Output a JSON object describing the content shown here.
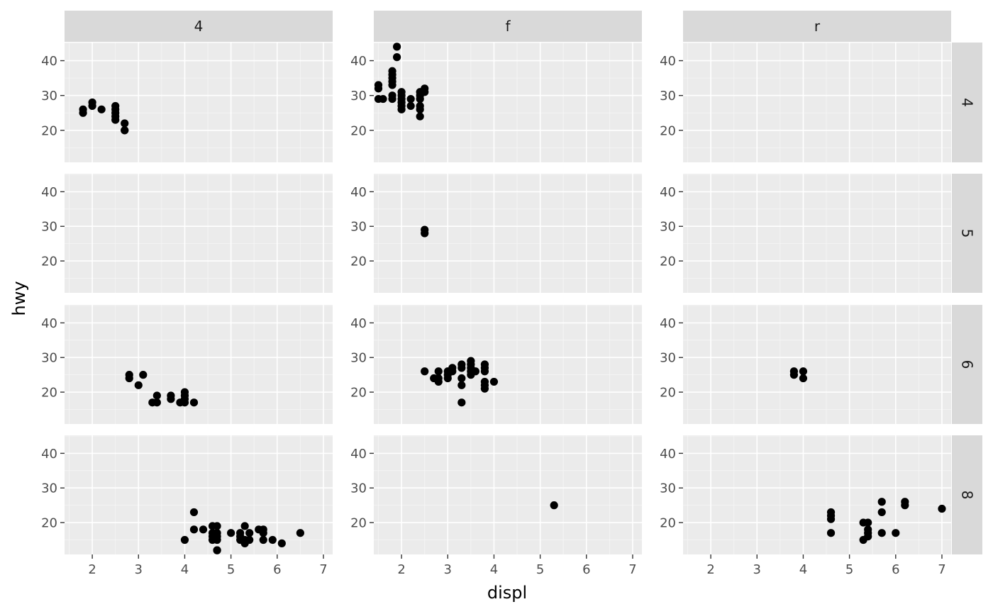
{
  "chart_data": {
    "type": "scatter",
    "xlabel": "displ",
    "ylabel": "hwy",
    "facet_cols": [
      "4",
      "f",
      "r"
    ],
    "facet_rows": [
      "4",
      "5",
      "6",
      "8"
    ],
    "xlim": [
      1.4,
      7.2
    ],
    "ylim": [
      10.8,
      45.2
    ],
    "x_ticks": [
      2,
      3,
      4,
      5,
      6,
      7
    ],
    "y_ticks": [
      20,
      30,
      40
    ],
    "grid": true,
    "point_color": "#000000",
    "panel_background": "#ebebeb",
    "strip_background": "#d9d9d9",
    "panels": [
      {
        "col": "4",
        "row": "4",
        "points": [
          [
            1.8,
            25
          ],
          [
            1.8,
            26
          ],
          [
            2.0,
            27
          ],
          [
            2.0,
            28
          ],
          [
            2.2,
            26
          ],
          [
            2.5,
            23
          ],
          [
            2.5,
            24
          ],
          [
            2.5,
            25
          ],
          [
            2.5,
            26
          ],
          [
            2.5,
            27
          ],
          [
            2.7,
            20
          ],
          [
            2.7,
            20
          ],
          [
            2.7,
            22
          ]
        ]
      },
      {
        "col": "f",
        "row": "4",
        "points": [
          [
            1.5,
            29
          ],
          [
            1.5,
            32
          ],
          [
            1.5,
            33
          ],
          [
            1.6,
            29
          ],
          [
            1.8,
            29
          ],
          [
            1.8,
            30
          ],
          [
            1.8,
            33
          ],
          [
            1.8,
            34
          ],
          [
            1.8,
            35
          ],
          [
            1.8,
            36
          ],
          [
            1.8,
            37
          ],
          [
            1.9,
            41
          ],
          [
            1.9,
            44
          ],
          [
            2.0,
            26
          ],
          [
            2.0,
            27
          ],
          [
            2.0,
            28
          ],
          [
            2.0,
            29
          ],
          [
            2.0,
            30
          ],
          [
            2.0,
            31
          ],
          [
            2.2,
            27
          ],
          [
            2.2,
            29
          ],
          [
            2.4,
            24
          ],
          [
            2.4,
            26
          ],
          [
            2.4,
            27
          ],
          [
            2.4,
            29
          ],
          [
            2.4,
            30
          ],
          [
            2.4,
            31
          ],
          [
            2.5,
            31
          ],
          [
            2.5,
            32
          ]
        ]
      },
      {
        "col": "r",
        "row": "4",
        "points": []
      },
      {
        "col": "4",
        "row": "5",
        "points": []
      },
      {
        "col": "f",
        "row": "5",
        "points": [
          [
            2.5,
            28
          ],
          [
            2.5,
            29
          ]
        ]
      },
      {
        "col": "r",
        "row": "5",
        "points": []
      },
      {
        "col": "4",
        "row": "6",
        "points": [
          [
            2.8,
            24
          ],
          [
            2.8,
            25
          ],
          [
            3.0,
            22
          ],
          [
            3.1,
            25
          ],
          [
            3.3,
            17
          ],
          [
            3.4,
            17
          ],
          [
            3.4,
            19
          ],
          [
            3.7,
            18
          ],
          [
            3.7,
            19
          ],
          [
            3.9,
            17
          ],
          [
            4.0,
            17
          ],
          [
            4.0,
            18
          ],
          [
            4.0,
            19
          ],
          [
            4.0,
            20
          ],
          [
            4.2,
            17
          ]
        ]
      },
      {
        "col": "f",
        "row": "6",
        "points": [
          [
            2.5,
            26
          ],
          [
            2.7,
            24
          ],
          [
            2.8,
            23
          ],
          [
            2.8,
            24
          ],
          [
            2.8,
            26
          ],
          [
            3.0,
            24
          ],
          [
            3.0,
            25
          ],
          [
            3.0,
            26
          ],
          [
            3.1,
            26
          ],
          [
            3.1,
            27
          ],
          [
            3.3,
            17
          ],
          [
            3.3,
            22
          ],
          [
            3.3,
            24
          ],
          [
            3.3,
            27
          ],
          [
            3.3,
            28
          ],
          [
            3.5,
            25
          ],
          [
            3.5,
            26
          ],
          [
            3.5,
            27
          ],
          [
            3.5,
            28
          ],
          [
            3.5,
            29
          ],
          [
            3.6,
            26
          ],
          [
            3.8,
            21
          ],
          [
            3.8,
            22
          ],
          [
            3.8,
            23
          ],
          [
            3.8,
            26
          ],
          [
            3.8,
            27
          ],
          [
            3.8,
            28
          ],
          [
            4.0,
            23
          ]
        ]
      },
      {
        "col": "r",
        "row": "6",
        "points": [
          [
            3.8,
            25
          ],
          [
            3.8,
            26
          ],
          [
            4.0,
            24
          ],
          [
            4.0,
            26
          ]
        ]
      },
      {
        "col": "4",
        "row": "8",
        "points": [
          [
            4.0,
            15
          ],
          [
            4.2,
            18
          ],
          [
            4.2,
            23
          ],
          [
            4.4,
            18
          ],
          [
            4.6,
            15
          ],
          [
            4.6,
            16
          ],
          [
            4.6,
            17
          ],
          [
            4.6,
            19
          ],
          [
            4.7,
            12
          ],
          [
            4.7,
            12
          ],
          [
            4.7,
            15
          ],
          [
            4.7,
            16
          ],
          [
            4.7,
            17
          ],
          [
            4.7,
            19
          ],
          [
            5.0,
            17
          ],
          [
            5.2,
            15
          ],
          [
            5.2,
            16
          ],
          [
            5.2,
            17
          ],
          [
            5.3,
            14
          ],
          [
            5.3,
            15
          ],
          [
            5.3,
            19
          ],
          [
            5.4,
            15
          ],
          [
            5.4,
            17
          ],
          [
            5.6,
            18
          ],
          [
            5.7,
            15
          ],
          [
            5.7,
            17
          ],
          [
            5.7,
            18
          ],
          [
            5.9,
            15
          ],
          [
            6.1,
            14
          ],
          [
            6.5,
            17
          ]
        ]
      },
      {
        "col": "f",
        "row": "8",
        "points": [
          [
            5.3,
            25
          ]
        ]
      },
      {
        "col": "r",
        "row": "8",
        "points": [
          [
            4.6,
            17
          ],
          [
            4.6,
            21
          ],
          [
            4.6,
            22
          ],
          [
            4.6,
            23
          ],
          [
            5.3,
            15
          ],
          [
            5.3,
            20
          ],
          [
            5.4,
            16
          ],
          [
            5.4,
            17
          ],
          [
            5.4,
            18
          ],
          [
            5.4,
            20
          ],
          [
            5.7,
            17
          ],
          [
            5.7,
            23
          ],
          [
            5.7,
            26
          ],
          [
            6.0,
            17
          ],
          [
            6.2,
            25
          ],
          [
            6.2,
            26
          ],
          [
            7.0,
            24
          ]
        ]
      }
    ]
  }
}
